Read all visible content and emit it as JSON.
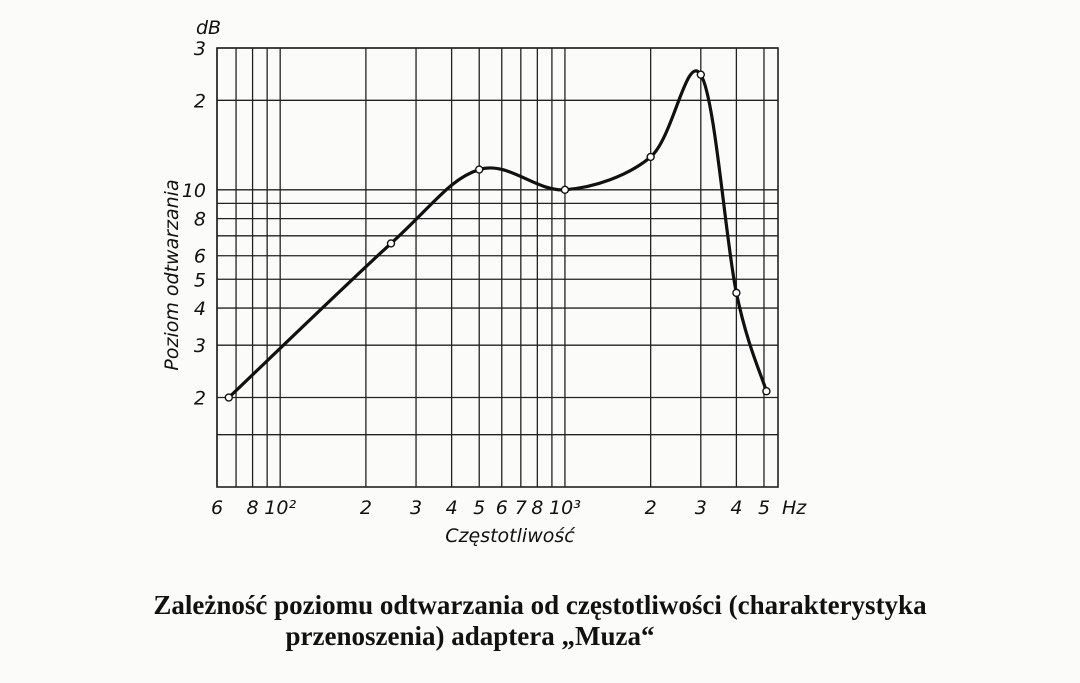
{
  "chart_data": {
    "type": "line",
    "y_unit": "dB",
    "x_unit": "Hz",
    "ylabel": "Poziom odtwarzania",
    "xlabel": "Częstotliwość",
    "caption": [
      "Zależność poziomu odtwarzania od częstotliwości (charakterystyka",
      "przenoszenia) adaptera „Muza“"
    ],
    "x_log": true,
    "y_log": true,
    "grid": true,
    "color": "#111111",
    "x": [
      66,
      245,
      500,
      1000,
      2000,
      3000,
      4000,
      5100
    ],
    "values": [
      2,
      6.6,
      11.7,
      10,
      12.9,
      24.4,
      4.5,
      2.1
    ],
    "xlim": [
      60,
      5600
    ],
    "ylim": [
      1,
      30
    ],
    "xticks": [
      {
        "value": 60,
        "label": "6"
      },
      {
        "value": 80,
        "label": "8"
      },
      {
        "value": 100,
        "label": "10²"
      },
      {
        "value": 200,
        "label": "2"
      },
      {
        "value": 300,
        "label": "3"
      },
      {
        "value": 400,
        "label": "4"
      },
      {
        "value": 500,
        "label": "5"
      },
      {
        "value": 600,
        "label": "6"
      },
      {
        "value": 700,
        "label": "7"
      },
      {
        "value": 800,
        "label": "8"
      },
      {
        "value": 1000,
        "label": "10³"
      },
      {
        "value": 2000,
        "label": "2"
      },
      {
        "value": 3000,
        "label": "3"
      },
      {
        "value": 4000,
        "label": "4"
      },
      {
        "value": 5000,
        "label": "5"
      }
    ],
    "x_grid": [
      70,
      90,
      900
    ],
    "yticks": [
      2,
      3,
      4,
      5,
      6,
      8,
      10,
      {
        "value": 20,
        "label": "2"
      },
      {
        "value": 30,
        "label": "3"
      }
    ],
    "y_grid": [
      1.5,
      7,
      9
    ]
  }
}
